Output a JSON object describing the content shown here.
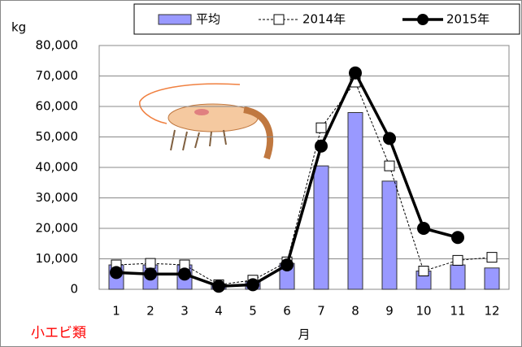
{
  "chart_data": {
    "type": "bar",
    "y_unit": "kg",
    "x_label": "月",
    "annotation": "小エビ類",
    "categories": [
      "1",
      "2",
      "3",
      "4",
      "5",
      "6",
      "7",
      "8",
      "9",
      "10",
      "11",
      "12"
    ],
    "series": [
      {
        "name": "平均",
        "type": "bar",
        "color": "#9999ff",
        "values": [
          8000,
          8000,
          8000,
          1500,
          2500,
          8500,
          40500,
          58000,
          35500,
          6000,
          8000,
          7000
        ]
      },
      {
        "name": "2014年",
        "type": "line",
        "color": "#000000",
        "dashed": true,
        "marker": "square",
        "values": [
          8000,
          8500,
          8000,
          1500,
          3000,
          9000,
          53000,
          68000,
          40500,
          6000,
          9500,
          10500
        ]
      },
      {
        "name": "2015年",
        "type": "line",
        "color": "#000000",
        "dashed": false,
        "marker": "circle",
        "values": [
          5500,
          5000,
          5000,
          1000,
          1500,
          8000,
          47000,
          71000,
          49500,
          20000,
          17000,
          null
        ]
      }
    ],
    "ylim": [
      0,
      80000
    ],
    "yticks": [
      0,
      {
        "value": 10000,
        "label": "10,000"
      },
      {
        "value": 20000,
        "label": "20,000"
      },
      {
        "value": 30000,
        "label": "30,000"
      },
      {
        "value": 40000,
        "label": "40,000"
      },
      {
        "value": 50000,
        "label": "50,000"
      },
      {
        "value": 60000,
        "label": "60,000"
      },
      {
        "value": 70000,
        "label": "70,000"
      },
      {
        "value": 80000,
        "label": "80,000"
      }
    ],
    "grid": true
  }
}
